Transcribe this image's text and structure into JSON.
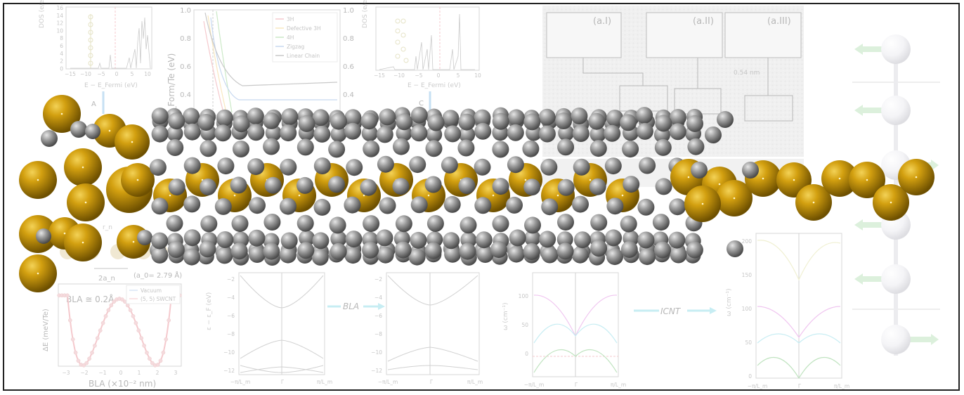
{
  "colors": {
    "gold": "#C9960C",
    "carbon": "#9a9a9a",
    "background": "#ffffff",
    "series_3H": "#e5737d",
    "series_defective3H": "#f0c45c",
    "series_4H": "#7ac86f",
    "series_zigzag": "#6f9bd9",
    "series_linear": "#707070",
    "phonon_pink": "#d86ad8",
    "phonon_cyan": "#6fd0e0",
    "phonon_green": "#5cb85c",
    "phonon_yellow": "#d8d88a"
  },
  "dos_left": {
    "ylabel": "DOS (e/eV/Å)",
    "xlabel": "E − E_Fermi (eV)",
    "yticks": [
      "16",
      "14",
      "12",
      "10",
      "8",
      "6",
      "4",
      "2",
      "0"
    ],
    "xticks": [
      "−15",
      "−10",
      "−5",
      "0",
      "5",
      "10"
    ],
    "arrow_label": "A"
  },
  "dos_right": {
    "ylabel": "DOS (e/eV/Å)",
    "xlabel": "E − E_Fermi (eV)",
    "yticks": [
      "16",
      "14",
      "12",
      "10",
      "8",
      "6",
      "4",
      "2",
      "0"
    ],
    "xticks": [
      "−15",
      "−10",
      "−5",
      "0",
      "5",
      "10"
    ],
    "arrow_label": "C"
  },
  "formation_chart": {
    "ylabel": "E_Form/Te (eV)",
    "yticks_left": [
      "1.0",
      "0.8",
      "0.6",
      "0.4"
    ],
    "yticks_right": [
      "1.0",
      "0.8",
      "0.6",
      "0.4"
    ],
    "legend": [
      "3H",
      "Defective 3H",
      "4H",
      "Zigzag",
      "Linear Chain"
    ]
  },
  "tem": {
    "label_1": "(a.I)",
    "label_2": "(a.II)",
    "label_3": "(a.III)",
    "scale": "0.54 nm"
  },
  "chain_geometry": {
    "a_n_label": "2a_n",
    "r_label": "r_n",
    "lattice_label": "(a_0= 2.79 Å)"
  },
  "bla_chart": {
    "annotation": "BLA ≅ 0.2Å",
    "ylabel": "ΔE (meV/Te)",
    "xlabel": "BLA (×10⁻² nm)",
    "xticks": [
      "−3",
      "−2",
      "−1",
      "0",
      "1",
      "2",
      "3"
    ],
    "legend": [
      "Vacuum",
      "(5, 5) SWCNT"
    ]
  },
  "bands_left": {
    "ylabel": "ε − ε_F (eV)",
    "yticks": [
      "−2",
      "−4",
      "−6",
      "−8",
      "−10",
      "−12"
    ],
    "xticks": [
      "−π/L_m",
      "Γ",
      "π/L_m"
    ]
  },
  "bla_arrow": {
    "label": "BLA"
  },
  "bands_right": {
    "yticks": [
      "−2",
      "−4",
      "−6",
      "−8",
      "−10",
      "−12"
    ],
    "xticks": [
      "−π/L_m",
      "Γ",
      "π/L_m"
    ]
  },
  "phonon_left": {
    "ylabel": "ω (cm⁻¹)",
    "yticks": [
      "100",
      "50",
      "0"
    ],
    "xticks": [
      "−π/L_m",
      "Γ",
      "π/L_m"
    ]
  },
  "icnt_arrow": {
    "label": "ICNT"
  },
  "phonon_right": {
    "ylabel": "ω (cm⁻¹)",
    "yticks": [
      "200",
      "150",
      "100",
      "50",
      "0"
    ],
    "xticks": [
      "−π/L_m",
      "Γ",
      "π/L_m"
    ]
  }
}
